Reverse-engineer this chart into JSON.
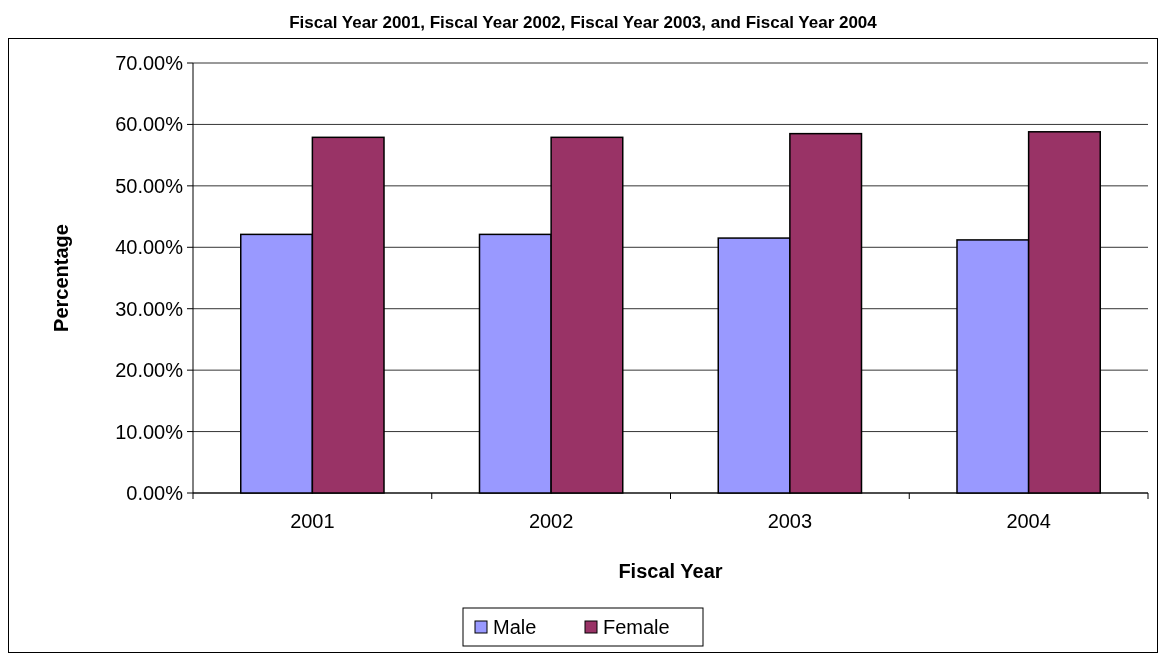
{
  "chart_data": {
    "type": "bar",
    "title": "Fiscal Year 2001, Fiscal Year 2002, Fiscal Year 2003, and Fiscal Year 2004",
    "xlabel": "Fiscal Year",
    "ylabel": "Percentage",
    "categories": [
      "2001",
      "2002",
      "2003",
      "2004"
    ],
    "series": [
      {
        "name": "Male",
        "color": "#9999ff",
        "values": [
          42.1,
          42.1,
          41.5,
          41.2
        ]
      },
      {
        "name": "Female",
        "color": "#993366",
        "values": [
          57.9,
          57.9,
          58.5,
          58.8
        ]
      }
    ],
    "ylim": [
      0,
      70
    ],
    "yticks": [
      {
        "value": 0,
        "label": "0.00%"
      },
      {
        "value": 10,
        "label": "10.00%"
      },
      {
        "value": 20,
        "label": "20.00%"
      },
      {
        "value": 30,
        "label": "30.00%"
      },
      {
        "value": 40,
        "label": "40.00%"
      },
      {
        "value": 50,
        "label": "50.00%"
      },
      {
        "value": 60,
        "label": "60.00%"
      },
      {
        "value": 70,
        "label": "70.00%"
      }
    ],
    "grid": "y",
    "legend": "bottom"
  }
}
